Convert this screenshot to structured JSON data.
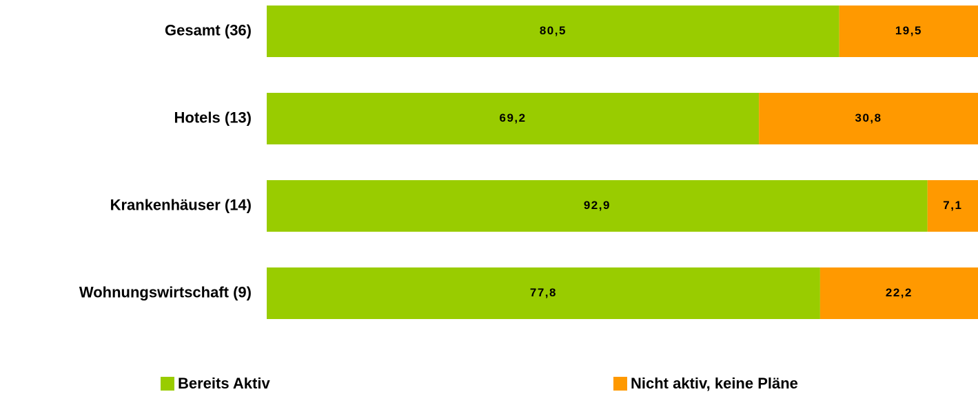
{
  "chart_data": {
    "type": "stacked_bar_horizontal",
    "categories": [
      "Gesamt (36)",
      "Hotels (13)",
      "Krankenhäuser (14)",
      "Wohnungswirtschaft (9)"
    ],
    "series": [
      {
        "name": "Bereits Aktiv",
        "color": "#99cc00",
        "values": [
          80.5,
          69.2,
          92.9,
          77.8
        ],
        "value_labels": [
          "80,5",
          "69,2",
          "92,9",
          "77,8"
        ]
      },
      {
        "name": "Nicht aktiv, keine Pläne",
        "color": "#ff9900",
        "values": [
          19.5,
          30.8,
          7.1,
          22.2
        ],
        "value_labels": [
          "19,5",
          "30,8",
          "7,1",
          "22,2"
        ]
      }
    ],
    "xlim": [
      0,
      100
    ],
    "legend": "bottom"
  }
}
